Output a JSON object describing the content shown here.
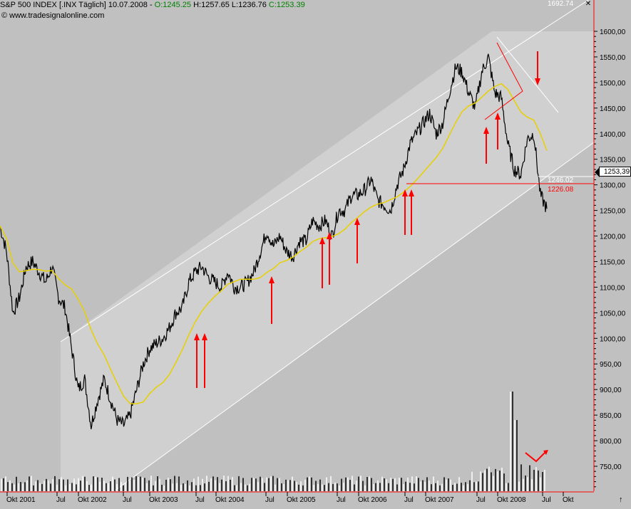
{
  "header": {
    "symbol": "S&P 500 INDEX [.INX  Täglich] 10.07.2008 - ",
    "open": "O:1245.25",
    "high_low": " H:1257.65 L:1236.76 ",
    "close": "C:1253.39",
    "source": "© www.tradesignalonline.com",
    "close_icon": "close-icon"
  },
  "chart_data": {
    "type": "line",
    "title": "S&P 500 INDEX [.INX  Täglich]",
    "y_axis": {
      "ticks": [
        "1600,00",
        "1550,00",
        "1500,00",
        "1450,00",
        "1400,00",
        "1350,00",
        "1300,00",
        "1250,00",
        "1200,00",
        "1150,00",
        "1100,00",
        "1050,00",
        "1000,00",
        "950,00",
        "900,00",
        "850,00",
        "800,00",
        "750,00"
      ],
      "tick_values": [
        1600,
        1550,
        1500,
        1450,
        1400,
        1350,
        1300,
        1250,
        1200,
        1150,
        1100,
        1050,
        1000,
        950,
        900,
        850,
        800,
        750
      ],
      "ylim": [
        700,
        1600
      ]
    },
    "x_axis": {
      "ticks": [
        "Okt 2001",
        "Jul",
        "Okt 2002",
        "Jul",
        "Okt 2003",
        "Jul",
        "Okt 2004",
        "Jul",
        "Okt 2005",
        "Jul",
        "Okt 2006",
        "Jul",
        "Okt 2007",
        "Jul",
        "Okt 2008",
        "Jul",
        "Okt"
      ]
    },
    "series": [
      {
        "x": [
          "2001-07",
          "2001-08",
          "2001-09",
          "2001-10",
          "2001-11",
          "2001-12",
          "2002-01",
          "2002-02",
          "2002-03",
          "2002-04",
          "2002-05",
          "2002-06",
          "2002-07",
          "2002-08",
          "2002-09",
          "2002-10",
          "2002-11",
          "2002-12",
          "2003-01",
          "2003-02",
          "2003-03",
          "2003-04",
          "2003-05",
          "2003-06",
          "2003-07",
          "2003-08",
          "2003-09",
          "2003-10",
          "2003-11",
          "2003-12",
          "2004-01",
          "2004-02",
          "2004-03",
          "2004-04",
          "2004-05",
          "2004-06",
          "2004-07",
          "2004-08",
          "2004-09",
          "2004-10",
          "2004-11",
          "2004-12",
          "2005-01",
          "2005-02",
          "2005-03",
          "2005-04",
          "2005-05",
          "2005-06",
          "2005-07",
          "2005-08",
          "2005-09",
          "2005-10",
          "2005-11",
          "2005-12",
          "2006-01",
          "2006-02",
          "2006-03",
          "2006-04",
          "2006-05",
          "2006-06",
          "2006-07",
          "2006-08",
          "2006-09",
          "2006-10",
          "2006-11",
          "2006-12",
          "2007-01",
          "2007-02",
          "2007-03",
          "2007-04",
          "2007-05",
          "2007-06",
          "2007-07",
          "2007-08",
          "2007-09",
          "2007-10",
          "2007-11",
          "2007-12",
          "2008-01",
          "2008-02",
          "2008-03",
          "2008-04",
          "2008-05",
          "2008-06",
          "2008-07"
        ],
        "values": [
          1220,
          1170,
          1050,
          1080,
          1140,
          1150,
          1130,
          1110,
          1140,
          1080,
          1060,
          980,
          900,
          920,
          830,
          880,
          920,
          880,
          840,
          830,
          850,
          900,
          950,
          980,
          990,
          1000,
          1020,
          1050,
          1060,
          1110,
          1130,
          1140,
          1120,
          1110,
          1100,
          1130,
          1100,
          1100,
          1110,
          1130,
          1170,
          1210,
          1180,
          1200,
          1170,
          1160,
          1190,
          1190,
          1230,
          1220,
          1230,
          1200,
          1250,
          1250,
          1280,
          1280,
          1290,
          1310,
          1270,
          1260,
          1250,
          1300,
          1330,
          1380,
          1400,
          1420,
          1440,
          1400,
          1420,
          1480,
          1530,
          1520,
          1480,
          1450,
          1520,
          1550,
          1480,
          1470,
          1380,
          1330,
          1320,
          1390,
          1400,
          1280,
          1253.39
        ]
      },
      {
        "name": "",
        "type": "moving-average",
        "color": "#e8d000"
      }
    ],
    "annotations": {
      "channel_top_value": "1692.74",
      "level_1": "1246.02",
      "level_2": "1226.08",
      "last_price": "1253,39"
    },
    "volume": true,
    "grid": false,
    "colors": {
      "price": "#000000",
      "moving_average": "#e8d000",
      "arrows": "#ff0000",
      "channel": "#ffffff",
      "channel_fill": "#d0d0d0",
      "background": "#c0c0c0",
      "axis_line": "#ff0000"
    }
  }
}
